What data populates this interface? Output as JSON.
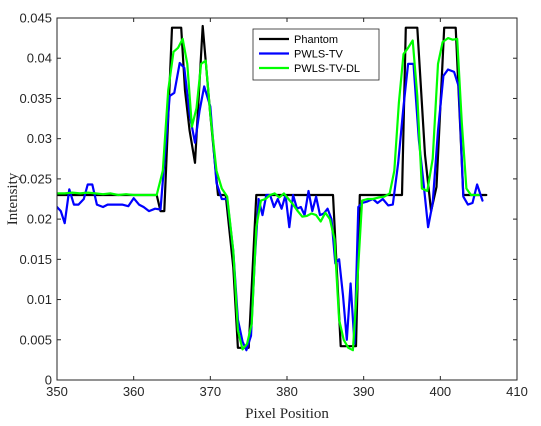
{
  "chart_data": {
    "type": "line",
    "xlabel": "Pixel Position",
    "ylabel": "Intensity",
    "xlim": [
      350,
      410
    ],
    "ylim": [
      0,
      0.045
    ],
    "xticks": [
      "350",
      "360",
      "370",
      "380",
      "390",
      "400",
      "410"
    ],
    "yticks": [
      "0",
      "0.005",
      "0.01",
      "0.015",
      "0.02",
      "0.025",
      "0.03",
      "0.035",
      "0.04",
      "0.045"
    ],
    "grid": false,
    "legend_position": "top-center",
    "series": [
      {
        "name": "Phantom",
        "color": "#000000",
        "points": [
          [
            350,
            0.023
          ],
          [
            363,
            0.023
          ],
          [
            363.5,
            0.021
          ],
          [
            364,
            0.021
          ],
          [
            365,
            0.0438
          ],
          [
            366.2,
            0.0438
          ],
          [
            366.7,
            0.036
          ],
          [
            367.3,
            0.031
          ],
          [
            368,
            0.027
          ],
          [
            369,
            0.044
          ],
          [
            370,
            0.033
          ],
          [
            371,
            0.023
          ],
          [
            372,
            0.023
          ],
          [
            373,
            0.014
          ],
          [
            373.6,
            0.004
          ],
          [
            374.3,
            0.004
          ],
          [
            375,
            0.004
          ],
          [
            376,
            0.023
          ],
          [
            386,
            0.023
          ],
          [
            387,
            0.0042
          ],
          [
            389,
            0.0042
          ],
          [
            389.5,
            0.023
          ],
          [
            395,
            0.023
          ],
          [
            395.5,
            0.0438
          ],
          [
            397,
            0.0438
          ],
          [
            398,
            0.028
          ],
          [
            398.8,
            0.021
          ],
          [
            399.5,
            0.024
          ],
          [
            400.5,
            0.0438
          ],
          [
            402,
            0.0438
          ],
          [
            403,
            0.023
          ],
          [
            406,
            0.023
          ]
        ]
      },
      {
        "name": "PWLS-TV",
        "color": "#0000ff",
        "points": [
          [
            350,
            0.0215
          ],
          [
            350.5,
            0.021
          ],
          [
            351,
            0.0195
          ],
          [
            351.6,
            0.0237
          ],
          [
            352.2,
            0.0218
          ],
          [
            352.8,
            0.0218
          ],
          [
            353.5,
            0.0225
          ],
          [
            354,
            0.0243
          ],
          [
            354.6,
            0.0243
          ],
          [
            355.2,
            0.0218
          ],
          [
            356,
            0.0215
          ],
          [
            356.6,
            0.0218
          ],
          [
            357.3,
            0.0218
          ],
          [
            358.5,
            0.0218
          ],
          [
            359.3,
            0.0216
          ],
          [
            360,
            0.0226
          ],
          [
            360.7,
            0.0218
          ],
          [
            361.3,
            0.0215
          ],
          [
            362,
            0.021
          ],
          [
            362.8,
            0.0213
          ],
          [
            363.5,
            0.0212
          ],
          [
            364,
            0.027
          ],
          [
            364.7,
            0.0353
          ],
          [
            365.3,
            0.0357
          ],
          [
            366,
            0.0394
          ],
          [
            366.6,
            0.0388
          ],
          [
            367.3,
            0.033
          ],
          [
            368,
            0.0295
          ],
          [
            368.6,
            0.0335
          ],
          [
            369.2,
            0.0365
          ],
          [
            370,
            0.034
          ],
          [
            370.8,
            0.0245
          ],
          [
            371.5,
            0.0225
          ],
          [
            372.2,
            0.0225
          ],
          [
            373,
            0.016
          ],
          [
            373.6,
            0.0075
          ],
          [
            374.2,
            0.0048
          ],
          [
            374.7,
            0.0037
          ],
          [
            375.3,
            0.0055
          ],
          [
            375.8,
            0.015
          ],
          [
            376.3,
            0.0225
          ],
          [
            376.8,
            0.0205
          ],
          [
            377.3,
            0.023
          ],
          [
            377.8,
            0.023
          ],
          [
            378.3,
            0.0215
          ],
          [
            378.8,
            0.0225
          ],
          [
            379.3,
            0.0213
          ],
          [
            379.8,
            0.023
          ],
          [
            380.3,
            0.019
          ],
          [
            380.8,
            0.023
          ],
          [
            381.3,
            0.0213
          ],
          [
            381.8,
            0.0215
          ],
          [
            382.3,
            0.0205
          ],
          [
            382.8,
            0.0235
          ],
          [
            383.3,
            0.021
          ],
          [
            383.8,
            0.0228
          ],
          [
            384.3,
            0.0205
          ],
          [
            384.8,
            0.0207
          ],
          [
            385.3,
            0.0213
          ],
          [
            385.8,
            0.02
          ],
          [
            386.3,
            0.0145
          ],
          [
            386.8,
            0.015
          ],
          [
            387.3,
            0.0105
          ],
          [
            387.8,
            0.005
          ],
          [
            388.3,
            0.012
          ],
          [
            388.8,
            0.0045
          ],
          [
            389.3,
            0.0215
          ],
          [
            389.8,
            0.022
          ],
          [
            390.5,
            0.0222
          ],
          [
            391.2,
            0.0225
          ],
          [
            391.8,
            0.022
          ],
          [
            392.5,
            0.0225
          ],
          [
            393.2,
            0.0217
          ],
          [
            393.8,
            0.0218
          ],
          [
            394.5,
            0.027
          ],
          [
            395.2,
            0.034
          ],
          [
            395.8,
            0.0393
          ],
          [
            396.5,
            0.0393
          ],
          [
            397.2,
            0.0298
          ],
          [
            397.8,
            0.0245
          ],
          [
            398.4,
            0.019
          ],
          [
            399,
            0.022
          ],
          [
            399.7,
            0.031
          ],
          [
            400.4,
            0.0378
          ],
          [
            401,
            0.0386
          ],
          [
            401.8,
            0.0383
          ],
          [
            402.4,
            0.0365
          ],
          [
            403,
            0.0228
          ],
          [
            403.6,
            0.0218
          ],
          [
            404.2,
            0.022
          ],
          [
            404.8,
            0.0243
          ],
          [
            405.5,
            0.0223
          ]
        ]
      },
      {
        "name": "PWLS-TV-DL",
        "color": "#00ff00",
        "points": [
          [
            350,
            0.0232
          ],
          [
            351,
            0.0232
          ],
          [
            352,
            0.0233
          ],
          [
            353,
            0.0232
          ],
          [
            354,
            0.0233
          ],
          [
            355,
            0.0232
          ],
          [
            356,
            0.0231
          ],
          [
            357,
            0.0232
          ],
          [
            358,
            0.023
          ],
          [
            359,
            0.0231
          ],
          [
            360,
            0.023
          ],
          [
            361,
            0.023
          ],
          [
            362,
            0.023
          ],
          [
            363,
            0.023
          ],
          [
            363.8,
            0.026
          ],
          [
            364.5,
            0.036
          ],
          [
            365.2,
            0.0408
          ],
          [
            365.8,
            0.0413
          ],
          [
            366.4,
            0.0424
          ],
          [
            367,
            0.0393
          ],
          [
            367.6,
            0.0315
          ],
          [
            368.2,
            0.0338
          ],
          [
            368.8,
            0.0393
          ],
          [
            369.4,
            0.0397
          ],
          [
            370,
            0.033
          ],
          [
            370.8,
            0.026
          ],
          [
            371.5,
            0.0238
          ],
          [
            372.2,
            0.0228
          ],
          [
            373,
            0.016
          ],
          [
            373.6,
            0.0062
          ],
          [
            374.2,
            0.0038
          ],
          [
            374.8,
            0.0045
          ],
          [
            375.4,
            0.007
          ],
          [
            376,
            0.019
          ],
          [
            376.6,
            0.0223
          ],
          [
            377.2,
            0.0225
          ],
          [
            377.8,
            0.023
          ],
          [
            378.4,
            0.0232
          ],
          [
            379,
            0.0227
          ],
          [
            379.6,
            0.0232
          ],
          [
            380.2,
            0.0225
          ],
          [
            380.8,
            0.0218
          ],
          [
            381.4,
            0.021
          ],
          [
            382,
            0.0203
          ],
          [
            382.6,
            0.0204
          ],
          [
            383.2,
            0.0207
          ],
          [
            383.8,
            0.0205
          ],
          [
            384.4,
            0.0197
          ],
          [
            385,
            0.0208
          ],
          [
            385.6,
            0.02
          ],
          [
            386.2,
            0.0175
          ],
          [
            386.8,
            0.0075
          ],
          [
            387.4,
            0.005
          ],
          [
            388,
            0.004
          ],
          [
            388.6,
            0.0037
          ],
          [
            389.2,
            0.0125
          ],
          [
            389.8,
            0.0223
          ],
          [
            390.5,
            0.0225
          ],
          [
            391.2,
            0.0225
          ],
          [
            392,
            0.0227
          ],
          [
            392.7,
            0.0228
          ],
          [
            393.4,
            0.0232
          ],
          [
            394,
            0.026
          ],
          [
            394.6,
            0.0345
          ],
          [
            395.2,
            0.0405
          ],
          [
            395.8,
            0.0413
          ],
          [
            396.4,
            0.0422
          ],
          [
            397,
            0.0353
          ],
          [
            397.6,
            0.0238
          ],
          [
            398.3,
            0.0235
          ],
          [
            399,
            0.0275
          ],
          [
            399.7,
            0.0393
          ],
          [
            400.3,
            0.042
          ],
          [
            401,
            0.0425
          ],
          [
            401.6,
            0.0423
          ],
          [
            402.2,
            0.0424
          ],
          [
            402.8,
            0.032
          ],
          [
            403.4,
            0.0238
          ],
          [
            404,
            0.023
          ],
          [
            405,
            0.023
          ]
        ]
      }
    ]
  }
}
